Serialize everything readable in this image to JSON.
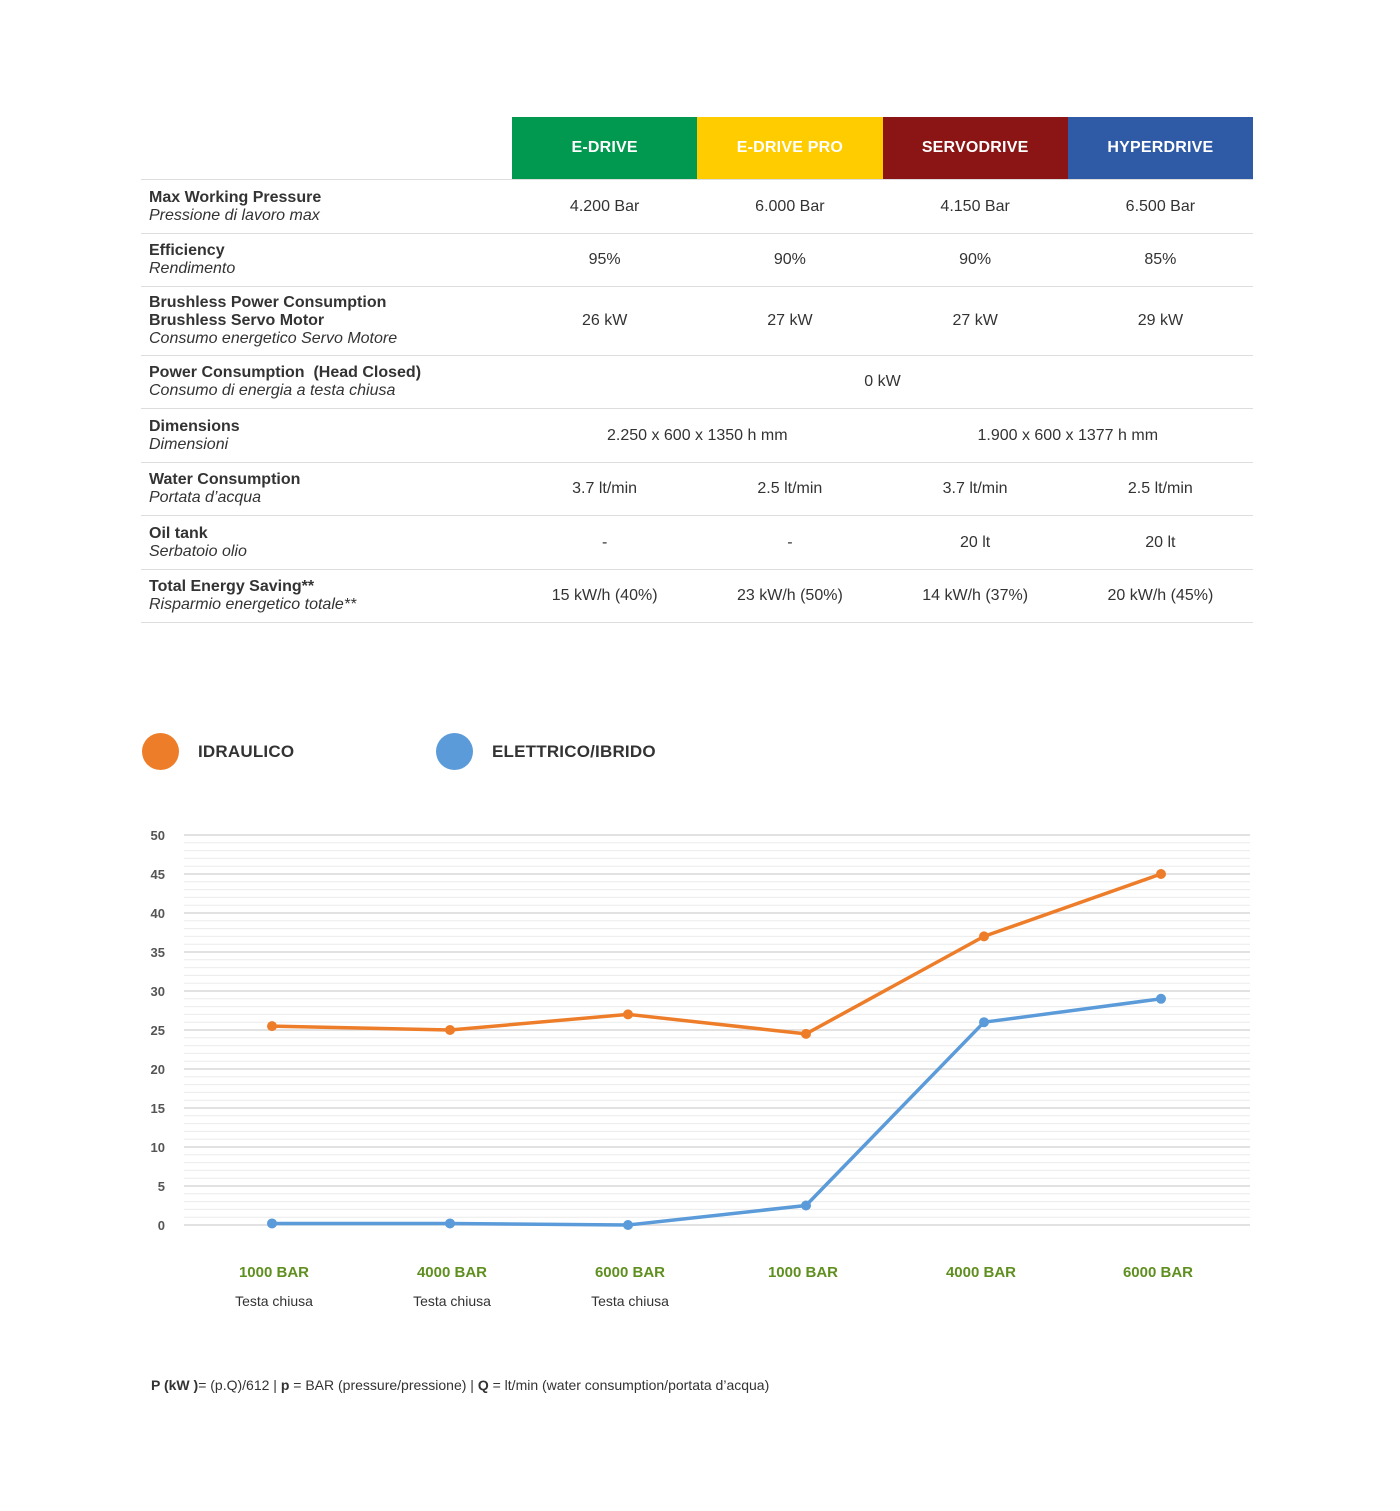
{
  "table": {
    "models": [
      {
        "name": "E-DRIVE",
        "color": "#00994f"
      },
      {
        "name": "E-DRIVE PRO",
        "color": "#ffcc00"
      },
      {
        "name": "SERVODRIVE",
        "color": "#8b1414"
      },
      {
        "name": "HYPERDRIVE",
        "color": "#2f5ba6"
      }
    ],
    "rows": [
      {
        "en": "Max Working Pressure",
        "it": "Pressione di lavoro max",
        "values": [
          "4.200 Bar",
          "6.000 Bar",
          "4.150 Bar",
          "6.500 Bar"
        ]
      },
      {
        "en": "Efficiency",
        "it": "Rendimento",
        "values": [
          "95%",
          "90%",
          "90%",
          "85%"
        ]
      },
      {
        "en": "Brushless Power Consumption",
        "en2": "Brushless Servo Motor",
        "it": "Consumo energetico Servo Motore",
        "values": [
          "26 kW",
          "27 kW",
          "27 kW",
          "29 kW"
        ]
      },
      {
        "en": "Power Consumption  (Head Closed)",
        "it": "Consumo di energia a testa chiusa",
        "span_value": "0 kW"
      },
      {
        "en": "Dimensions",
        "it": "Dimensioni",
        "pair_values": [
          "2.250 x 600 x 1350 h mm",
          "1.900 x 600 x 1377 h mm"
        ]
      },
      {
        "en": "Water Consumption",
        "it": "Portata d’acqua",
        "values": [
          "3.7 lt/min",
          "2.5 lt/min",
          "3.7 lt/min",
          "2.5 lt/min"
        ]
      },
      {
        "en": "Oil tank",
        "it": "Serbatoio olio",
        "values": [
          "-",
          "-",
          "20 lt",
          "20 lt"
        ]
      },
      {
        "en": "Total Energy Saving**",
        "it": "Risparmio energetico totale**",
        "values": [
          "15 kW/h (40%)",
          "23 kW/h (50%)",
          "14 kW/h (37%)",
          "20 kW/h (45%)"
        ]
      }
    ]
  },
  "chart_data": {
    "type": "line",
    "categories": [
      {
        "main": "1000 BAR",
        "sub": "Testa chiusa"
      },
      {
        "main": "4000 BAR",
        "sub": "Testa chiusa"
      },
      {
        "main": "6000 BAR",
        "sub": "Testa chiusa"
      },
      {
        "main": "1000 BAR",
        "sub": ""
      },
      {
        "main": "4000 BAR",
        "sub": ""
      },
      {
        "main": "6000 BAR",
        "sub": ""
      }
    ],
    "series": [
      {
        "name": "IDRAULICO",
        "color": "#ee7d2a",
        "values": [
          25.5,
          25,
          27,
          24.5,
          37,
          45
        ]
      },
      {
        "name": "ELETTRICO/IBRIDO",
        "color": "#5b9bd9",
        "values": [
          0.2,
          0.2,
          0,
          2.5,
          26,
          29
        ]
      }
    ],
    "yticks": [
      0,
      5,
      10,
      15,
      20,
      25,
      30,
      35,
      40,
      45,
      50
    ],
    "ylim": [
      0,
      50
    ],
    "category_label_color": "#5f8f1f",
    "grid": true
  },
  "footnote": {
    "p1_bold": "P (kW )",
    "p1": "= (p.Q)/612 | ",
    "p2_bold": "p",
    "p2": " = BAR (pressure/pressione) | ",
    "p3_bold": "Q",
    "p3": " = lt/min (water consumption/portata d’acqua)"
  }
}
